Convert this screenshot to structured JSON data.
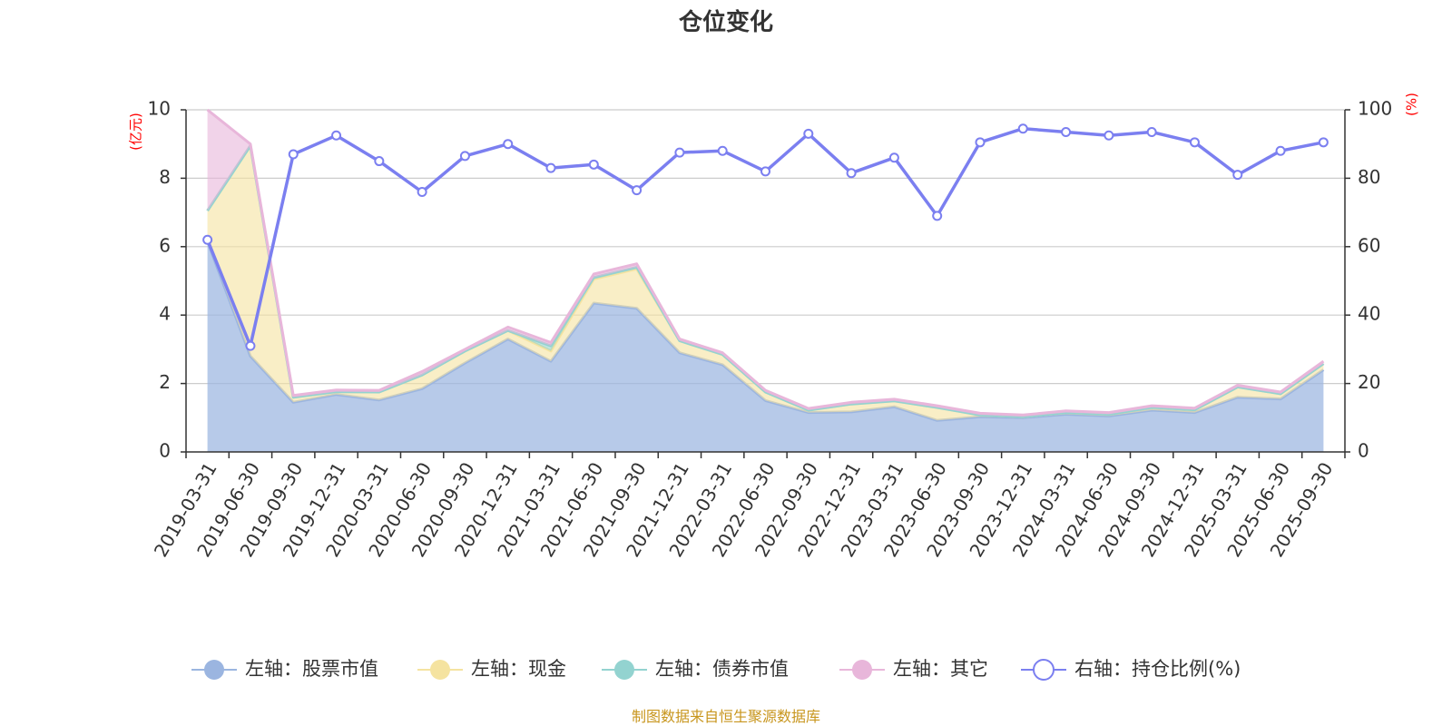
{
  "chart_data": {
    "type": "area",
    "title": "仓位变化",
    "left_axis_unit": "(亿元)",
    "right_axis_unit": "(%)",
    "left_ylim": [
      0,
      10
    ],
    "right_ylim": [
      0,
      100
    ],
    "left_ticks": [
      "0",
      "2",
      "4",
      "6",
      "8",
      "10"
    ],
    "right_ticks": [
      "0",
      "20",
      "40",
      "60",
      "80",
      "100"
    ],
    "grid": true,
    "legend_position": "bottom",
    "categories": [
      "2019-03-31",
      "2019-06-30",
      "2019-09-30",
      "2019-12-31",
      "2020-03-31",
      "2020-06-30",
      "2020-09-30",
      "2020-12-31",
      "2021-03-31",
      "2021-06-30",
      "2021-09-30",
      "2021-12-31",
      "2022-03-31",
      "2022-06-30",
      "2022-09-30",
      "2022-12-31",
      "2023-03-31",
      "2023-06-30",
      "2023-09-30",
      "2023-12-31",
      "2024-03-31",
      "2024-06-30",
      "2024-09-30",
      "2024-12-31",
      "2025-03-31",
      "2025-06-30",
      "2025-09-30"
    ],
    "series": [
      {
        "name": "左轴：股票市值",
        "axis": "left",
        "type": "stacked-area",
        "color": "#9bb5e0",
        "values": [
          6.15,
          2.8,
          1.45,
          1.68,
          1.52,
          1.85,
          2.6,
          3.3,
          2.65,
          4.35,
          4.2,
          2.9,
          2.55,
          1.5,
          1.15,
          1.17,
          1.32,
          0.92,
          1.03,
          1.0,
          1.1,
          1.05,
          1.22,
          1.15,
          1.6,
          1.55,
          2.4
        ]
      },
      {
        "name": "左轴：现金",
        "axis": "left",
        "type": "stacked-area",
        "color": "#f5e3a0",
        "values": [
          0.9,
          6.15,
          0.15,
          0.08,
          0.23,
          0.4,
          0.35,
          0.25,
          0.3,
          0.7,
          1.15,
          0.35,
          0.3,
          0.25,
          0.07,
          0.23,
          0.17,
          0.38,
          0.05,
          0.03,
          0.05,
          0.05,
          0.08,
          0.08,
          0.3,
          0.15,
          0.18
        ]
      },
      {
        "name": "左轴：债券市值",
        "axis": "left",
        "type": "stacked-area",
        "color": "#93d3d0",
        "values": [
          0,
          0,
          0,
          0,
          0,
          0,
          0,
          0,
          0.15,
          0.05,
          0.05,
          0,
          0,
          0,
          0,
          0,
          0,
          0,
          0,
          0,
          0,
          0,
          0,
          0,
          0,
          0,
          0
        ]
      },
      {
        "name": "左轴：其它",
        "axis": "left",
        "type": "stacked-area",
        "color": "#e8b6da",
        "values": [
          2.95,
          0.05,
          0.05,
          0.05,
          0.05,
          0.1,
          0.05,
          0.1,
          0.1,
          0.1,
          0.1,
          0.05,
          0.05,
          0.05,
          0.05,
          0.05,
          0.05,
          0.05,
          0.05,
          0.05,
          0.05,
          0.05,
          0.05,
          0.05,
          0.05,
          0.05,
          0.07
        ]
      },
      {
        "name": "右轴：持仓比例(%)",
        "axis": "right",
        "type": "line",
        "color": "#7b7ff0",
        "values": [
          62,
          31,
          87,
          92.5,
          85,
          76,
          86.5,
          90,
          83,
          84,
          76.5,
          87.5,
          88,
          82,
          93,
          81.5,
          86,
          69,
          90.5,
          94.5,
          93.5,
          92.5,
          93.5,
          90.5,
          81,
          88,
          90.5
        ]
      }
    ]
  },
  "source_note": "制图数据来自恒生聚源数据库"
}
